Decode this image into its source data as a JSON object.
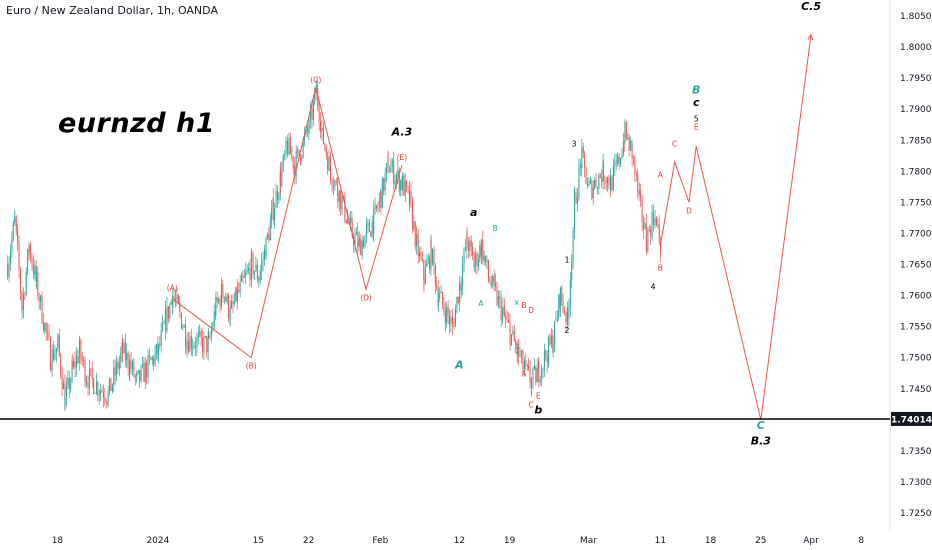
{
  "header": {
    "symbol_text": "Euro / New Zealand Dollar, 1h, OANDA"
  },
  "title": "eurnzd h1",
  "price_marker": "1.74014",
  "colors": {
    "bull": "#26a69a",
    "bear": "#ef5350",
    "wave": "#ef5350",
    "wave_label_red": "#e53935",
    "wave_label_green": "#26a69a",
    "hline": "#000000",
    "axis_text": "#131722"
  },
  "chart_data": {
    "type": "candlestick",
    "ylim": [
      1.7225,
      1.8075
    ],
    "yticks": [
      "1.80500",
      "1.80000",
      "1.79500",
      "1.79000",
      "1.78500",
      "1.78000",
      "1.77500",
      "1.77000",
      "1.76500",
      "1.76000",
      "1.75500",
      "1.75000",
      "1.74500",
      "1.73500",
      "1.73000",
      "1.72500"
    ],
    "ytick_values": [
      1.805,
      1.8,
      1.795,
      1.79,
      1.785,
      1.78,
      1.775,
      1.77,
      1.765,
      1.76,
      1.755,
      1.75,
      1.745,
      1.735,
      1.73,
      1.725
    ],
    "xticks": [
      {
        "label": "18",
        "x": "2023-12-18"
      },
      {
        "label": "2024",
        "x": "2024-01-01"
      },
      {
        "label": "15",
        "x": "2024-01-15"
      },
      {
        "label": "22",
        "x": "2024-01-22"
      },
      {
        "label": "Feb",
        "x": "2024-02-01"
      },
      {
        "label": "12",
        "x": "2024-02-12"
      },
      {
        "label": "19",
        "x": "2024-02-19"
      },
      {
        "label": "Mar",
        "x": "2024-03-01"
      },
      {
        "label": "11",
        "x": "2024-03-11"
      },
      {
        "label": "18",
        "x": "2024-03-18"
      },
      {
        "label": "25",
        "x": "2024-03-25"
      },
      {
        "label": "Apr",
        "x": "2024-04-01"
      },
      {
        "label": "8",
        "x": "2024-04-08"
      }
    ],
    "horizontal_line": 1.74014,
    "price_path": [
      [
        "2023-12-11",
        1.765
      ],
      [
        "2023-12-12",
        1.772
      ],
      [
        "2023-12-13",
        1.758
      ],
      [
        "2023-12-14",
        1.768
      ],
      [
        "2023-12-15",
        1.762
      ],
      [
        "2023-12-17",
        1.75
      ],
      [
        "2023-12-18",
        1.752
      ],
      [
        "2023-12-19",
        1.743
      ],
      [
        "2023-12-20",
        1.748
      ],
      [
        "2023-12-21",
        1.751
      ],
      [
        "2023-12-22",
        1.747
      ],
      [
        "2023-12-25",
        1.744
      ],
      [
        "2023-12-27",
        1.751
      ],
      [
        "2023-12-28",
        1.749
      ],
      [
        "2023-12-29",
        1.746
      ],
      [
        "2024-01-01",
        1.751
      ],
      [
        "2024-01-02",
        1.756
      ],
      [
        "2024-01-03",
        1.76
      ],
      [
        "2024-01-04",
        1.757
      ],
      [
        "2024-01-05",
        1.753
      ],
      [
        "2024-01-08",
        1.752
      ],
      [
        "2024-01-09",
        1.758
      ],
      [
        "2024-01-10",
        1.761
      ],
      [
        "2024-01-11",
        1.757
      ],
      [
        "2024-01-12",
        1.76
      ],
      [
        "2024-01-14",
        1.765
      ],
      [
        "2024-01-15",
        1.763
      ],
      [
        "2024-01-16",
        1.768
      ],
      [
        "2024-01-17",
        1.774
      ],
      [
        "2024-01-18",
        1.779
      ],
      [
        "2024-01-19",
        1.784
      ],
      [
        "2024-01-20",
        1.781
      ],
      [
        "2024-01-22",
        1.787
      ],
      [
        "2024-01-23",
        1.793
      ],
      [
        "2024-01-24",
        1.785
      ],
      [
        "2024-01-25",
        1.78
      ],
      [
        "2024-01-26",
        1.777
      ],
      [
        "2024-01-28",
        1.77
      ],
      [
        "2024-01-29",
        1.768
      ],
      [
        "2024-01-30",
        1.77
      ],
      [
        "2024-01-31",
        1.772
      ],
      [
        "2024-02-01",
        1.776
      ],
      [
        "2024-02-02",
        1.781
      ],
      [
        "2024-02-04",
        1.778
      ],
      [
        "2024-02-05",
        1.775
      ],
      [
        "2024-02-06",
        1.768
      ],
      [
        "2024-02-07",
        1.763
      ],
      [
        "2024-02-08",
        1.767
      ],
      [
        "2024-02-09",
        1.76
      ],
      [
        "2024-02-11",
        1.755
      ],
      [
        "2024-02-12",
        1.762
      ],
      [
        "2024-02-13",
        1.769
      ],
      [
        "2024-02-14",
        1.765
      ],
      [
        "2024-02-15",
        1.768
      ],
      [
        "2024-02-16",
        1.763
      ],
      [
        "2024-02-18",
        1.757
      ],
      [
        "2024-02-19",
        1.754
      ],
      [
        "2024-02-20",
        1.751
      ],
      [
        "2024-02-21",
        1.748
      ],
      [
        "2024-02-22",
        1.746
      ],
      [
        "2024-02-23",
        1.748
      ],
      [
        "2024-02-25",
        1.753
      ],
      [
        "2024-02-26",
        1.76
      ],
      [
        "2024-02-27",
        1.756
      ],
      [
        "2024-02-28",
        1.775
      ],
      [
        "2024-02-29",
        1.782
      ],
      [
        "2024-03-01",
        1.777
      ],
      [
        "2024-03-03",
        1.78
      ],
      [
        "2024-03-04",
        1.778
      ],
      [
        "2024-03-05",
        1.781
      ],
      [
        "2024-03-06",
        1.786
      ],
      [
        "2024-03-07",
        1.783
      ],
      [
        "2024-03-08",
        1.775
      ],
      [
        "2024-03-09",
        1.769
      ],
      [
        "2024-03-10",
        1.773
      ],
      [
        "2024-03-11",
        1.768
      ]
    ],
    "projection": [
      [
        "2024-03-11",
        1.768
      ],
      [
        "2024-03-13",
        1.7815
      ],
      [
        "2024-03-15",
        1.775
      ],
      [
        "2024-03-16",
        1.784
      ],
      [
        "2024-03-25",
        1.74
      ],
      [
        "2024-04-01",
        1.802
      ]
    ],
    "wave_lines": [
      [
        [
          "2024-01-03",
          1.7595
        ],
        [
          "2024-01-14",
          1.75
        ],
        [
          "2024-01-23",
          1.7935
        ],
        [
          "2024-01-30",
          1.761
        ],
        [
          "2024-02-04",
          1.781
        ]
      ]
    ],
    "wave_labels": [
      {
        "text": "(A)",
        "x": "2024-01-03",
        "y": 1.76,
        "color": "red",
        "size": "small",
        "pos": "above"
      },
      {
        "text": "(B)",
        "x": "2024-01-14",
        "y": 1.75,
        "color": "red",
        "size": "small",
        "pos": "below"
      },
      {
        "text": "(C)",
        "x": "2024-01-23",
        "y": 1.7935,
        "color": "red",
        "size": "small",
        "pos": "above"
      },
      {
        "text": "(D)",
        "x": "2024-01-30",
        "y": 1.761,
        "color": "red",
        "size": "small",
        "pos": "below"
      },
      {
        "text": "(E)",
        "x": "2024-02-04",
        "y": 1.781,
        "color": "red",
        "size": "small",
        "pos": "above"
      },
      {
        "text": "A.3",
        "x": "2024-02-04",
        "y": 1.785,
        "color": "black",
        "size": "big",
        "pos": "above"
      },
      {
        "text": "A",
        "x": "2024-02-12",
        "y": 1.75,
        "color": "green",
        "size": "big",
        "pos": "below"
      },
      {
        "text": "a",
        "x": "2024-02-14",
        "y": 1.772,
        "color": "black",
        "size": "big",
        "pos": "above"
      },
      {
        "text": "A",
        "x": "2024-02-15",
        "y": 1.7583,
        "color": "green",
        "size": "small",
        "pos": "center"
      },
      {
        "text": "B",
        "x": "2024-02-17",
        "y": 1.7704,
        "color": "green",
        "size": "small",
        "pos": "center"
      },
      {
        "text": "x",
        "x": "2024-02-20",
        "y": 1.7585,
        "color": "green",
        "size": "small",
        "pos": "center"
      },
      {
        "text": "C",
        "x": "2024-02-20",
        "y": 1.7507,
        "color": "green",
        "size": "small",
        "pos": "center"
      },
      {
        "text": "B",
        "x": "2024-02-21",
        "y": 1.758,
        "color": "red",
        "size": "small",
        "pos": "center"
      },
      {
        "text": "D",
        "x": "2024-02-22",
        "y": 1.7572,
        "color": "red",
        "size": "small",
        "pos": "center"
      },
      {
        "text": "A",
        "x": "2024-02-21",
        "y": 1.747,
        "color": "red",
        "size": "small",
        "pos": "center"
      },
      {
        "text": "C",
        "x": "2024-02-22",
        "y": 1.742,
        "color": "red",
        "size": "small",
        "pos": "center"
      },
      {
        "text": "E",
        "x": "2024-02-23",
        "y": 1.7434,
        "color": "red",
        "size": "small",
        "pos": "center"
      },
      {
        "text": "b",
        "x": "2024-02-23",
        "y": 1.741,
        "color": "black",
        "size": "big",
        "pos": "center"
      },
      {
        "text": "1",
        "x": "2024-02-27",
        "y": 1.7653,
        "color": "black",
        "size": "small",
        "pos": "center"
      },
      {
        "text": "2",
        "x": "2024-02-27",
        "y": 1.754,
        "color": "black",
        "size": "small",
        "pos": "center"
      },
      {
        "text": "3",
        "x": "2024-02-28",
        "y": 1.784,
        "color": "black",
        "size": "small",
        "pos": "center"
      },
      {
        "text": "4",
        "x": "2024-03-10",
        "y": 1.761,
        "color": "black",
        "size": "small",
        "pos": "center"
      },
      {
        "text": "A",
        "x": "2024-03-11",
        "y": 1.779,
        "color": "red",
        "size": "small",
        "pos": "center"
      },
      {
        "text": "B",
        "x": "2024-03-11",
        "y": 1.764,
        "color": "red",
        "size": "small",
        "pos": "center"
      },
      {
        "text": "C",
        "x": "2024-03-13",
        "y": 1.784,
        "color": "red",
        "size": "small",
        "pos": "center"
      },
      {
        "text": "D",
        "x": "2024-03-15",
        "y": 1.7732,
        "color": "red",
        "size": "small",
        "pos": "center"
      },
      {
        "text": "5",
        "x": "2024-03-16",
        "y": 1.788,
        "color": "black",
        "size": "small",
        "pos": "center"
      },
      {
        "text": "E",
        "x": "2024-03-16",
        "y": 1.7867,
        "color": "red",
        "size": "small",
        "pos": "center"
      },
      {
        "text": "c",
        "x": "2024-03-16",
        "y": 1.7905,
        "color": "black",
        "size": "big",
        "pos": "center"
      },
      {
        "text": "B",
        "x": "2024-03-16",
        "y": 1.7925,
        "color": "green",
        "size": "big",
        "pos": "center"
      },
      {
        "text": "C",
        "x": "2024-03-25",
        "y": 1.7385,
        "color": "green",
        "size": "big",
        "pos": "center"
      },
      {
        "text": "B.3",
        "x": "2024-03-25",
        "y": 1.736,
        "color": "black",
        "size": "big",
        "pos": "center"
      },
      {
        "text": "C.5",
        "x": "2024-04-01",
        "y": 1.806,
        "color": "black",
        "size": "big",
        "pos": "center"
      }
    ]
  }
}
